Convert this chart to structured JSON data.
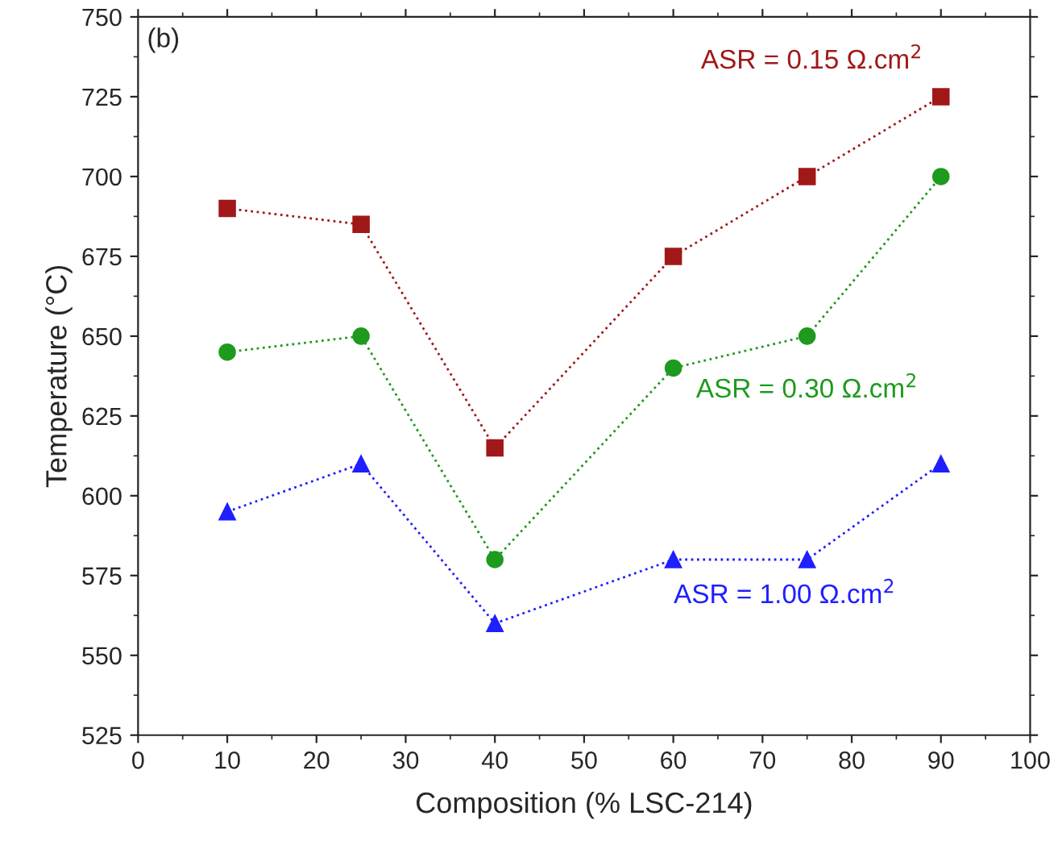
{
  "chart_data": {
    "type": "line",
    "xlabel": "Composition (% LSC-214)",
    "ylabel": "Temperature (°C)",
    "annotations": [
      "(b)"
    ],
    "x": [
      10,
      25,
      40,
      60,
      75,
      90
    ],
    "series": [
      {
        "name": "ASR = 0.15 Ω.cm$^{2}$",
        "color": "#a01818",
        "marker": "square",
        "values": [
          690,
          685,
          615,
          675,
          700,
          725
        ]
      },
      {
        "name": "ASR = 0.30 Ω.cm$^{2}$",
        "color": "#1e9a1e",
        "marker": "circle",
        "values": [
          645,
          650,
          580,
          640,
          650,
          700
        ]
      },
      {
        "name": "ASR = 1.00 Ω.cm$^{2}$",
        "color": "#1f1fff",
        "marker": "triangle",
        "values": [
          595,
          610,
          560,
          580,
          580,
          610
        ]
      }
    ],
    "line_style": "dotted",
    "grid": false,
    "xlim": [
      0,
      100
    ],
    "xticks": [
      0,
      10,
      20,
      30,
      40,
      50,
      60,
      70,
      80,
      90,
      100
    ],
    "ylim": [
      525,
      750
    ],
    "yticks": [
      525,
      550,
      575,
      600,
      625,
      650,
      675,
      700,
      725,
      750
    ]
  }
}
